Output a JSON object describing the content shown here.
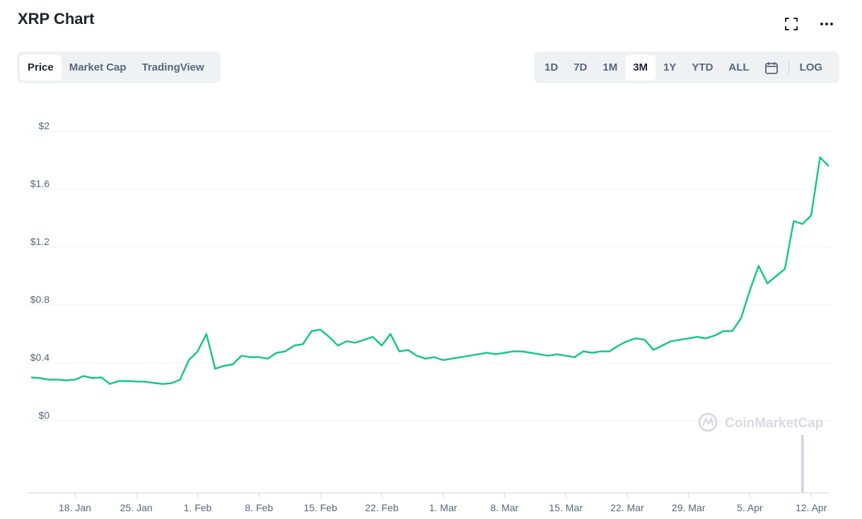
{
  "header": {
    "title": "XRP Chart",
    "fullscreen_icon": "expand-icon",
    "more_icon": "more-dots-icon"
  },
  "view_tabs": [
    {
      "label": "Price",
      "active": true
    },
    {
      "label": "Market Cap",
      "active": false
    },
    {
      "label": "TradingView",
      "active": false
    }
  ],
  "range_tabs": [
    {
      "label": "1D",
      "active": false
    },
    {
      "label": "7D",
      "active": false
    },
    {
      "label": "1M",
      "active": false
    },
    {
      "label": "3M",
      "active": true
    },
    {
      "label": "1Y",
      "active": false
    },
    {
      "label": "YTD",
      "active": false
    },
    {
      "label": "ALL",
      "active": false
    }
  ],
  "calendar_icon": "calendar-icon",
  "log_label": "LOG",
  "watermark": "CoinMarketCap",
  "colors": {
    "line": "#16c784",
    "volume": "#cfd6e4",
    "grid": "#eff2f5",
    "text": "#58667e"
  },
  "chart_data": {
    "type": "line",
    "title": "",
    "xlabel": "",
    "ylabel": "",
    "ylim": [
      0,
      2
    ],
    "yticks": [
      "$0",
      "$0.4",
      "$0.8",
      "$1.2",
      "$1.6",
      "$2"
    ],
    "ytick_values": [
      0,
      0.4,
      0.8,
      1.2,
      1.6,
      2
    ],
    "xticks": [
      "18. Jan",
      "25. Jan",
      "1. Feb",
      "8. Feb",
      "15. Feb",
      "22. Feb",
      "1. Mar",
      "8. Mar",
      "15. Mar",
      "22. Mar",
      "29. Mar",
      "5. Apr",
      "12. Apr"
    ],
    "grid": true,
    "series": [
      {
        "values": [
          [
            "2021-01-13",
            0.3
          ],
          [
            "2021-01-14",
            0.295
          ],
          [
            "2021-01-15",
            0.285
          ],
          [
            "2021-01-16",
            0.285
          ],
          [
            "2021-01-17",
            0.28
          ],
          [
            "2021-01-18",
            0.285
          ],
          [
            "2021-01-19",
            0.31
          ],
          [
            "2021-01-20",
            0.295
          ],
          [
            "2021-01-21",
            0.3
          ],
          [
            "2021-01-22",
            0.255
          ],
          [
            "2021-01-23",
            0.275
          ],
          [
            "2021-01-24",
            0.275
          ],
          [
            "2021-01-25",
            0.272
          ],
          [
            "2021-01-26",
            0.27
          ],
          [
            "2021-01-27",
            0.262
          ],
          [
            "2021-01-28",
            0.255
          ],
          [
            "2021-01-29",
            0.26
          ],
          [
            "2021-01-30",
            0.285
          ],
          [
            "2021-01-31",
            0.42
          ],
          [
            "2021-02-01",
            0.48
          ],
          [
            "2021-02-02",
            0.6
          ],
          [
            "2021-02-03",
            0.36
          ],
          [
            "2021-02-04",
            0.38
          ],
          [
            "2021-02-05",
            0.39
          ],
          [
            "2021-02-06",
            0.45
          ],
          [
            "2021-02-07",
            0.44
          ],
          [
            "2021-02-08",
            0.44
          ],
          [
            "2021-02-09",
            0.43
          ],
          [
            "2021-02-10",
            0.47
          ],
          [
            "2021-02-11",
            0.48
          ],
          [
            "2021-02-12",
            0.52
          ],
          [
            "2021-02-13",
            0.53
          ],
          [
            "2021-02-14",
            0.62
          ],
          [
            "2021-02-15",
            0.63
          ],
          [
            "2021-02-16",
            0.58
          ],
          [
            "2021-02-17",
            0.52
          ],
          [
            "2021-02-18",
            0.55
          ],
          [
            "2021-02-19",
            0.54
          ],
          [
            "2021-02-20",
            0.56
          ],
          [
            "2021-02-21",
            0.58
          ],
          [
            "2021-02-22",
            0.52
          ],
          [
            "2021-02-23",
            0.6
          ],
          [
            "2021-02-24",
            0.48
          ],
          [
            "2021-02-25",
            0.49
          ],
          [
            "2021-02-26",
            0.45
          ],
          [
            "2021-02-27",
            0.43
          ],
          [
            "2021-02-28",
            0.44
          ],
          [
            "2021-03-01",
            0.42
          ],
          [
            "2021-03-02",
            0.43
          ],
          [
            "2021-03-03",
            0.44
          ],
          [
            "2021-03-04",
            0.45
          ],
          [
            "2021-03-05",
            0.46
          ],
          [
            "2021-03-06",
            0.47
          ],
          [
            "2021-03-07",
            0.46
          ],
          [
            "2021-03-08",
            0.47
          ],
          [
            "2021-03-09",
            0.48
          ],
          [
            "2021-03-10",
            0.48
          ],
          [
            "2021-03-11",
            0.47
          ],
          [
            "2021-03-12",
            0.46
          ],
          [
            "2021-03-13",
            0.45
          ],
          [
            "2021-03-14",
            0.46
          ],
          [
            "2021-03-15",
            0.45
          ],
          [
            "2021-03-16",
            0.44
          ],
          [
            "2021-03-17",
            0.48
          ],
          [
            "2021-03-18",
            0.47
          ],
          [
            "2021-03-19",
            0.48
          ],
          [
            "2021-03-20",
            0.48
          ],
          [
            "2021-03-21",
            0.52
          ],
          [
            "2021-03-22",
            0.55
          ],
          [
            "2021-03-23",
            0.57
          ],
          [
            "2021-03-24",
            0.56
          ],
          [
            "2021-03-25",
            0.49
          ],
          [
            "2021-03-26",
            0.52
          ],
          [
            "2021-03-27",
            0.55
          ],
          [
            "2021-03-28",
            0.56
          ],
          [
            "2021-03-29",
            0.57
          ],
          [
            "2021-03-30",
            0.58
          ],
          [
            "2021-03-31",
            0.57
          ],
          [
            "2021-04-01",
            0.59
          ],
          [
            "2021-04-02",
            0.62
          ],
          [
            "2021-04-03",
            0.62
          ],
          [
            "2021-04-04",
            0.71
          ],
          [
            "2021-04-05",
            0.9
          ],
          [
            "2021-04-06",
            1.07
          ],
          [
            "2021-04-07",
            0.95
          ],
          [
            "2021-04-08",
            1.0
          ],
          [
            "2021-04-09",
            1.05
          ],
          [
            "2021-04-10",
            1.38
          ],
          [
            "2021-04-11",
            1.36
          ],
          [
            "2021-04-12",
            1.42
          ],
          [
            "2021-04-13",
            1.82
          ],
          [
            "2021-04-14",
            1.76
          ]
        ]
      }
    ],
    "volume": [
      [
        "2021-04-11",
        1.0
      ]
    ]
  }
}
